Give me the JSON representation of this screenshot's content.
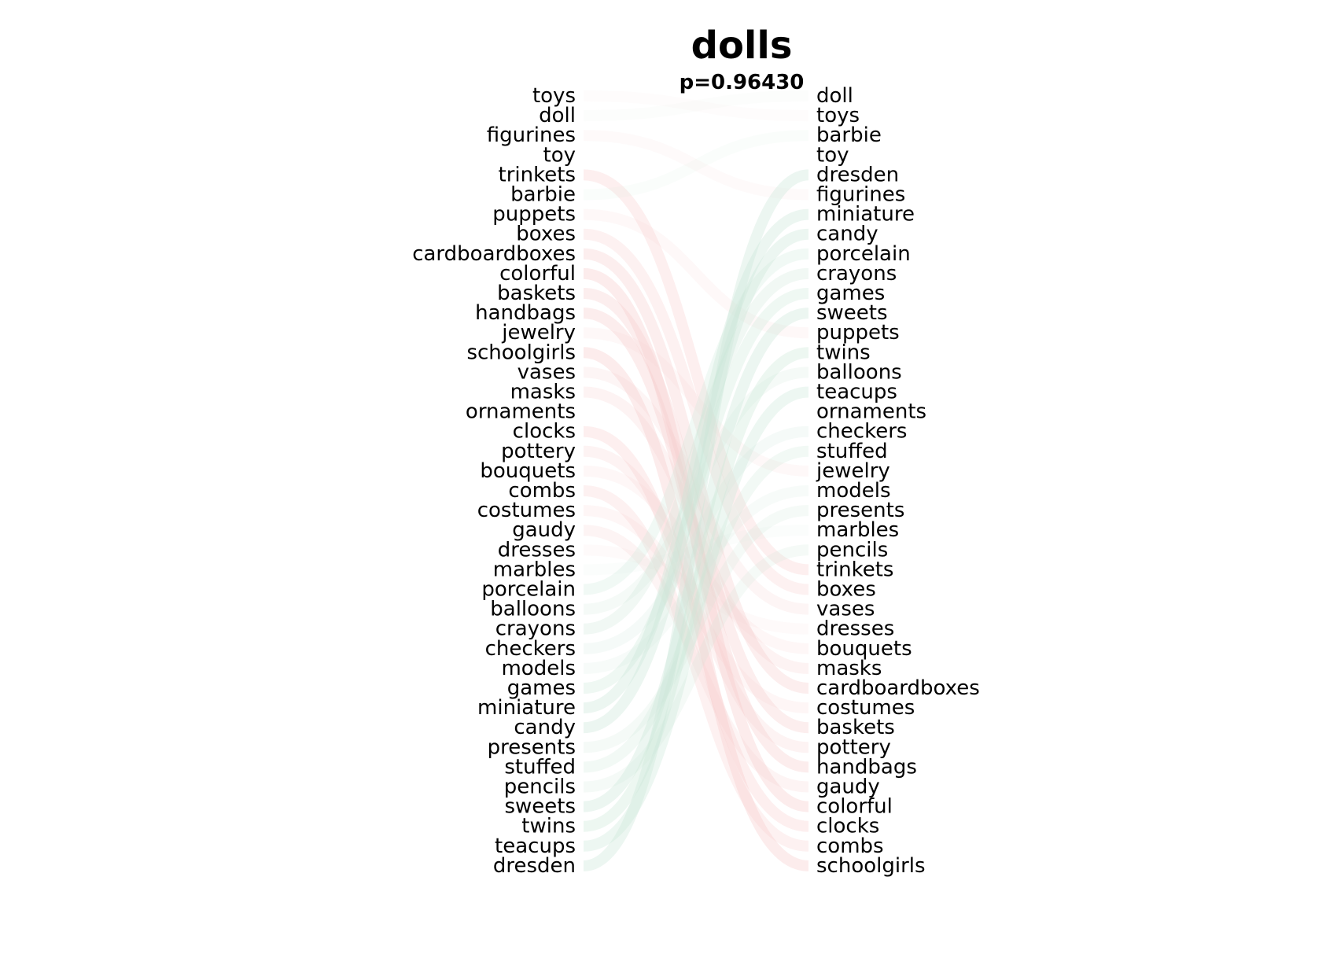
{
  "title": "dolls",
  "subtitle": "p=0.96430",
  "chart_data": {
    "type": "bump",
    "left_list": [
      "toys",
      "doll",
      "figurines",
      "toy",
      "trinkets",
      "barbie",
      "puppets",
      "boxes",
      "cardboardboxes",
      "colorful",
      "baskets",
      "handbags",
      "jewelry",
      "schoolgirls",
      "vases",
      "masks",
      "ornaments",
      "clocks",
      "pottery",
      "bouquets",
      "combs",
      "costumes",
      "gaudy",
      "dresses",
      "marbles",
      "porcelain",
      "balloons",
      "crayons",
      "checkers",
      "models",
      "games",
      "miniature",
      "candy",
      "presents",
      "stuffed",
      "pencils",
      "sweets",
      "twins",
      "teacups",
      "dresden"
    ],
    "right_list": [
      "doll",
      "toys",
      "barbie",
      "toy",
      "dresden",
      "figurines",
      "miniature",
      "candy",
      "porcelain",
      "crayons",
      "games",
      "sweets",
      "puppets",
      "twins",
      "balloons",
      "teacups",
      "ornaments",
      "checkers",
      "stuffed",
      "jewelry",
      "models",
      "presents",
      "marbles",
      "pencils",
      "trinkets",
      "boxes",
      "vases",
      "dresses",
      "bouquets",
      "masks",
      "cardboardboxes",
      "costumes",
      "baskets",
      "pottery",
      "handbags",
      "gaudy",
      "colorful",
      "clocks",
      "combs",
      "schoolgirls"
    ],
    "colors": {
      "rank_drop": "#f7c9c9",
      "rank_rise": "#c9e6d6",
      "text": "#000000"
    }
  }
}
